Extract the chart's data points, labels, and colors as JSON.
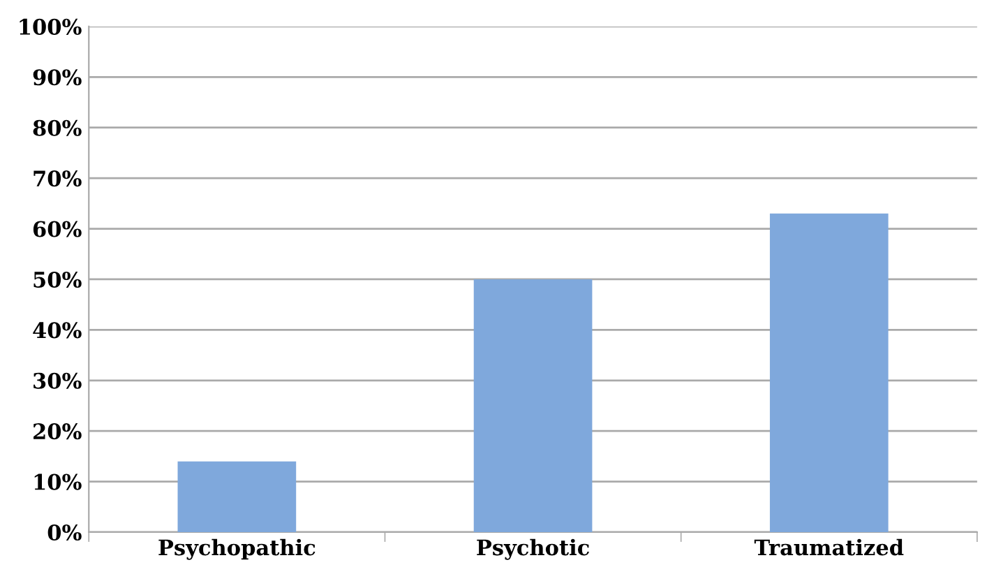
{
  "chart_data": {
    "type": "bar",
    "categories": [
      "Psychopathic",
      "Psychotic",
      "Traumatized"
    ],
    "values": [
      14,
      50,
      63
    ],
    "color": "#7fa8dc",
    "ylim": [
      0,
      100
    ],
    "yticks": [
      {
        "value": 0,
        "label": "0%"
      },
      {
        "value": 10,
        "label": "10%"
      },
      {
        "value": 20,
        "label": "20%"
      },
      {
        "value": 30,
        "label": "30%"
      },
      {
        "value": 40,
        "label": "40%"
      },
      {
        "value": 50,
        "label": "50%"
      },
      {
        "value": 60,
        "label": "60%"
      },
      {
        "value": 70,
        "label": "70%"
      },
      {
        "value": 80,
        "label": "80%"
      },
      {
        "value": 90,
        "label": "90%"
      },
      {
        "value": 100,
        "label": "100%"
      }
    ],
    "grid": "y",
    "legend": false
  }
}
